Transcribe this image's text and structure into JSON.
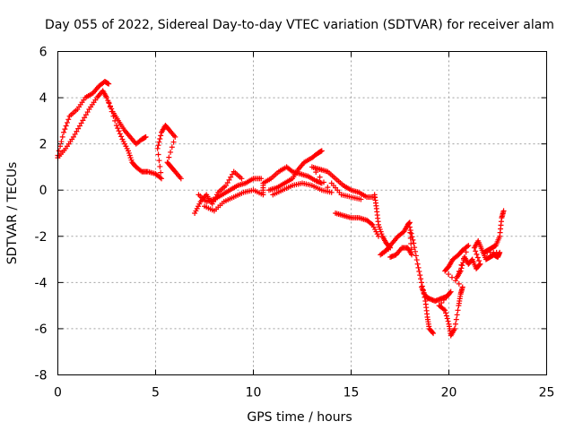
{
  "chart_data": {
    "type": "scatter",
    "title": "Day 055 of 2022, Sidereal Day-to-day VTEC variation (SDTVAR) for receiver alam",
    "xlabel": "GPS time / hours",
    "ylabel": "SDTVAR / TECUs",
    "xlim": [
      0,
      25
    ],
    "ylim": [
      -8,
      6
    ],
    "grid": true,
    "marker": "+",
    "marker_color": "#ff0000",
    "x_ticks": [
      0,
      5,
      10,
      15,
      20,
      25
    ],
    "x_tick_labels": [
      "0",
      "5",
      "10",
      "15",
      "20",
      "25"
    ],
    "y_ticks": [
      -8,
      -6,
      -4,
      -2,
      0,
      2,
      4,
      6
    ],
    "y_tick_labels": [
      "-8",
      "-6",
      "-4",
      "-2",
      "0",
      "2",
      "4",
      "6"
    ],
    "series": [
      {
        "name": "alam",
        "points": [
          [
            0.0,
            1.5
          ],
          [
            0.3,
            2.5
          ],
          [
            0.6,
            3.2
          ],
          [
            1.0,
            3.5
          ],
          [
            1.4,
            4.0
          ],
          [
            1.8,
            4.2
          ],
          [
            2.1,
            4.5
          ],
          [
            2.4,
            4.7
          ],
          [
            2.6,
            4.6
          ],
          [
            0.0,
            1.4
          ],
          [
            0.4,
            1.8
          ],
          [
            0.8,
            2.3
          ],
          [
            1.2,
            2.9
          ],
          [
            1.6,
            3.5
          ],
          [
            2.0,
            4.0
          ],
          [
            2.3,
            4.3
          ],
          [
            2.5,
            4.0
          ],
          [
            2.8,
            3.4
          ],
          [
            3.1,
            3.0
          ],
          [
            3.4,
            2.6
          ],
          [
            3.7,
            2.3
          ],
          [
            4.0,
            2.0
          ],
          [
            4.3,
            2.2
          ],
          [
            4.5,
            2.3
          ],
          [
            2.6,
            3.8
          ],
          [
            3.0,
            2.8
          ],
          [
            3.3,
            2.2
          ],
          [
            3.6,
            1.7
          ],
          [
            3.8,
            1.2
          ],
          [
            4.0,
            1.0
          ],
          [
            4.3,
            0.8
          ],
          [
            4.6,
            0.8
          ],
          [
            5.0,
            0.7
          ],
          [
            5.3,
            0.5
          ],
          [
            5.1,
            1.8
          ],
          [
            5.3,
            2.5
          ],
          [
            5.5,
            2.8
          ],
          [
            5.7,
            2.6
          ],
          [
            6.0,
            2.3
          ],
          [
            5.6,
            1.2
          ],
          [
            5.8,
            1.0
          ],
          [
            6.0,
            0.8
          ],
          [
            6.3,
            0.5
          ],
          [
            7.0,
            -1.0
          ],
          [
            7.3,
            -0.5
          ],
          [
            7.6,
            -0.2
          ],
          [
            7.9,
            -0.6
          ],
          [
            8.2,
            -0.1
          ],
          [
            8.6,
            0.2
          ],
          [
            9.0,
            0.8
          ],
          [
            9.4,
            0.5
          ],
          [
            7.2,
            -0.2
          ],
          [
            7.6,
            -0.5
          ],
          [
            8.0,
            -0.4
          ],
          [
            8.4,
            -0.2
          ],
          [
            8.8,
            0.0
          ],
          [
            9.2,
            0.2
          ],
          [
            9.6,
            0.3
          ],
          [
            10.0,
            0.5
          ],
          [
            10.4,
            0.5
          ],
          [
            7.5,
            -0.7
          ],
          [
            8.0,
            -0.9
          ],
          [
            8.5,
            -0.5
          ],
          [
            9.0,
            -0.3
          ],
          [
            9.5,
            -0.1
          ],
          [
            10.0,
            0.0
          ],
          [
            10.5,
            -0.2
          ],
          [
            10.5,
            0.3
          ],
          [
            10.9,
            0.5
          ],
          [
            11.3,
            0.8
          ],
          [
            11.7,
            1.0
          ],
          [
            12.0,
            0.8
          ],
          [
            12.4,
            0.7
          ],
          [
            12.8,
            0.6
          ],
          [
            13.2,
            0.4
          ],
          [
            13.5,
            0.3
          ],
          [
            10.8,
            0.0
          ],
          [
            11.2,
            0.1
          ],
          [
            11.6,
            0.3
          ],
          [
            12.0,
            0.5
          ],
          [
            12.3,
            0.9
          ],
          [
            12.6,
            1.2
          ],
          [
            13.0,
            1.4
          ],
          [
            13.3,
            1.6
          ],
          [
            13.5,
            1.7
          ],
          [
            11.0,
            -0.2
          ],
          [
            11.5,
            0.0
          ],
          [
            12.0,
            0.2
          ],
          [
            12.5,
            0.3
          ],
          [
            13.0,
            0.2
          ],
          [
            13.5,
            0.0
          ],
          [
            14.0,
            -0.1
          ],
          [
            13.0,
            1.0
          ],
          [
            13.4,
            0.9
          ],
          [
            13.8,
            0.8
          ],
          [
            14.2,
            0.5
          ],
          [
            14.6,
            0.2
          ],
          [
            15.0,
            0.0
          ],
          [
            15.4,
            -0.1
          ],
          [
            15.8,
            -0.3
          ],
          [
            16.2,
            -0.3
          ],
          [
            14.0,
            0.3
          ],
          [
            14.5,
            -0.2
          ],
          [
            15.0,
            -0.3
          ],
          [
            15.5,
            -0.4
          ],
          [
            14.2,
            -1.0
          ],
          [
            14.6,
            -1.1
          ],
          [
            15.0,
            -1.2
          ],
          [
            15.4,
            -1.2
          ],
          [
            15.8,
            -1.3
          ],
          [
            16.1,
            -1.5
          ],
          [
            16.4,
            -2.0
          ],
          [
            16.2,
            -0.2
          ],
          [
            16.3,
            -0.8
          ],
          [
            16.4,
            -1.5
          ],
          [
            16.6,
            -2.0
          ],
          [
            16.8,
            -2.3
          ],
          [
            17.0,
            -2.5
          ],
          [
            16.5,
            -2.8
          ],
          [
            16.8,
            -2.6
          ],
          [
            17.1,
            -2.3
          ],
          [
            17.4,
            -2.0
          ],
          [
            17.7,
            -1.8
          ],
          [
            17.9,
            -1.5
          ],
          [
            18.0,
            -1.4
          ],
          [
            17.0,
            -2.9
          ],
          [
            17.3,
            -2.8
          ],
          [
            17.6,
            -2.5
          ],
          [
            17.9,
            -2.5
          ],
          [
            18.1,
            -2.8
          ],
          [
            18.0,
            -1.6
          ],
          [
            18.2,
            -2.3
          ],
          [
            18.4,
            -3.2
          ],
          [
            18.6,
            -4.0
          ],
          [
            18.8,
            -4.8
          ],
          [
            18.9,
            -5.5
          ],
          [
            19.0,
            -6.0
          ],
          [
            19.2,
            -6.2
          ],
          [
            18.6,
            -4.2
          ],
          [
            18.8,
            -4.6
          ],
          [
            19.0,
            -4.7
          ],
          [
            19.3,
            -4.8
          ],
          [
            19.6,
            -4.7
          ],
          [
            19.9,
            -4.6
          ],
          [
            20.1,
            -4.4
          ],
          [
            19.5,
            -5.0
          ],
          [
            19.8,
            -5.2
          ],
          [
            20.0,
            -5.8
          ],
          [
            20.1,
            -6.3
          ],
          [
            20.3,
            -6.0
          ],
          [
            20.5,
            -5.0
          ],
          [
            20.6,
            -4.5
          ],
          [
            20.7,
            -4.2
          ],
          [
            19.8,
            -3.5
          ],
          [
            20.0,
            -3.3
          ],
          [
            20.2,
            -3.0
          ],
          [
            20.5,
            -2.8
          ],
          [
            20.7,
            -2.6
          ],
          [
            21.0,
            -2.4
          ],
          [
            20.4,
            -3.8
          ],
          [
            20.6,
            -3.5
          ],
          [
            20.8,
            -2.9
          ],
          [
            21.0,
            -3.2
          ],
          [
            21.2,
            -3.0
          ],
          [
            21.4,
            -3.4
          ],
          [
            21.6,
            -3.2
          ],
          [
            21.3,
            -2.5
          ],
          [
            21.5,
            -2.2
          ],
          [
            21.7,
            -2.6
          ],
          [
            21.9,
            -3.0
          ],
          [
            22.1,
            -2.9
          ],
          [
            22.3,
            -2.8
          ],
          [
            22.5,
            -2.9
          ],
          [
            22.6,
            -2.7
          ],
          [
            21.8,
            -2.7
          ],
          [
            22.0,
            -2.6
          ],
          [
            22.2,
            -2.5
          ],
          [
            22.4,
            -2.4
          ],
          [
            22.6,
            -2.0
          ],
          [
            22.7,
            -1.2
          ],
          [
            22.8,
            -0.9
          ]
        ]
      }
    ]
  }
}
